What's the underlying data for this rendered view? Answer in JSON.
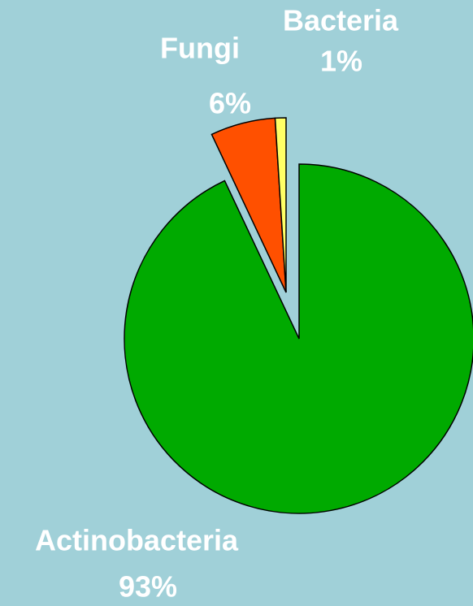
{
  "chart_data": {
    "type": "pie",
    "categories": [
      "Actinobacteria",
      "Fungi",
      "Bacteria"
    ],
    "values": [
      93,
      6,
      1
    ],
    "value_labels": [
      "93%",
      "6%",
      "1%"
    ],
    "colors": [
      "#00aa00",
      "#ff5000",
      "#ffff66"
    ]
  }
}
